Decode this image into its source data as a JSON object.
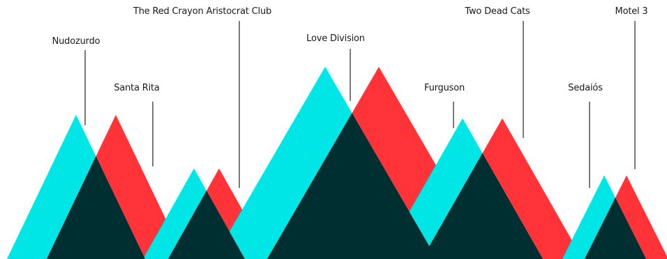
{
  "colors": {
    "cyan": "#00e5e5",
    "red": "#ff3338",
    "overlap": "#002f32",
    "leader": "#222222",
    "background": "#ffffff"
  },
  "bands": [
    {
      "name": "Nudozurdo"
    },
    {
      "name": "Santa Rita"
    },
    {
      "name": "The Red Crayon Aristocrat Club"
    },
    {
      "name": "Love Division"
    },
    {
      "name": "Furguson"
    },
    {
      "name": "Two Dead Cats"
    },
    {
      "name": "Sedaiós"
    },
    {
      "name": "Motel 3"
    }
  ]
}
